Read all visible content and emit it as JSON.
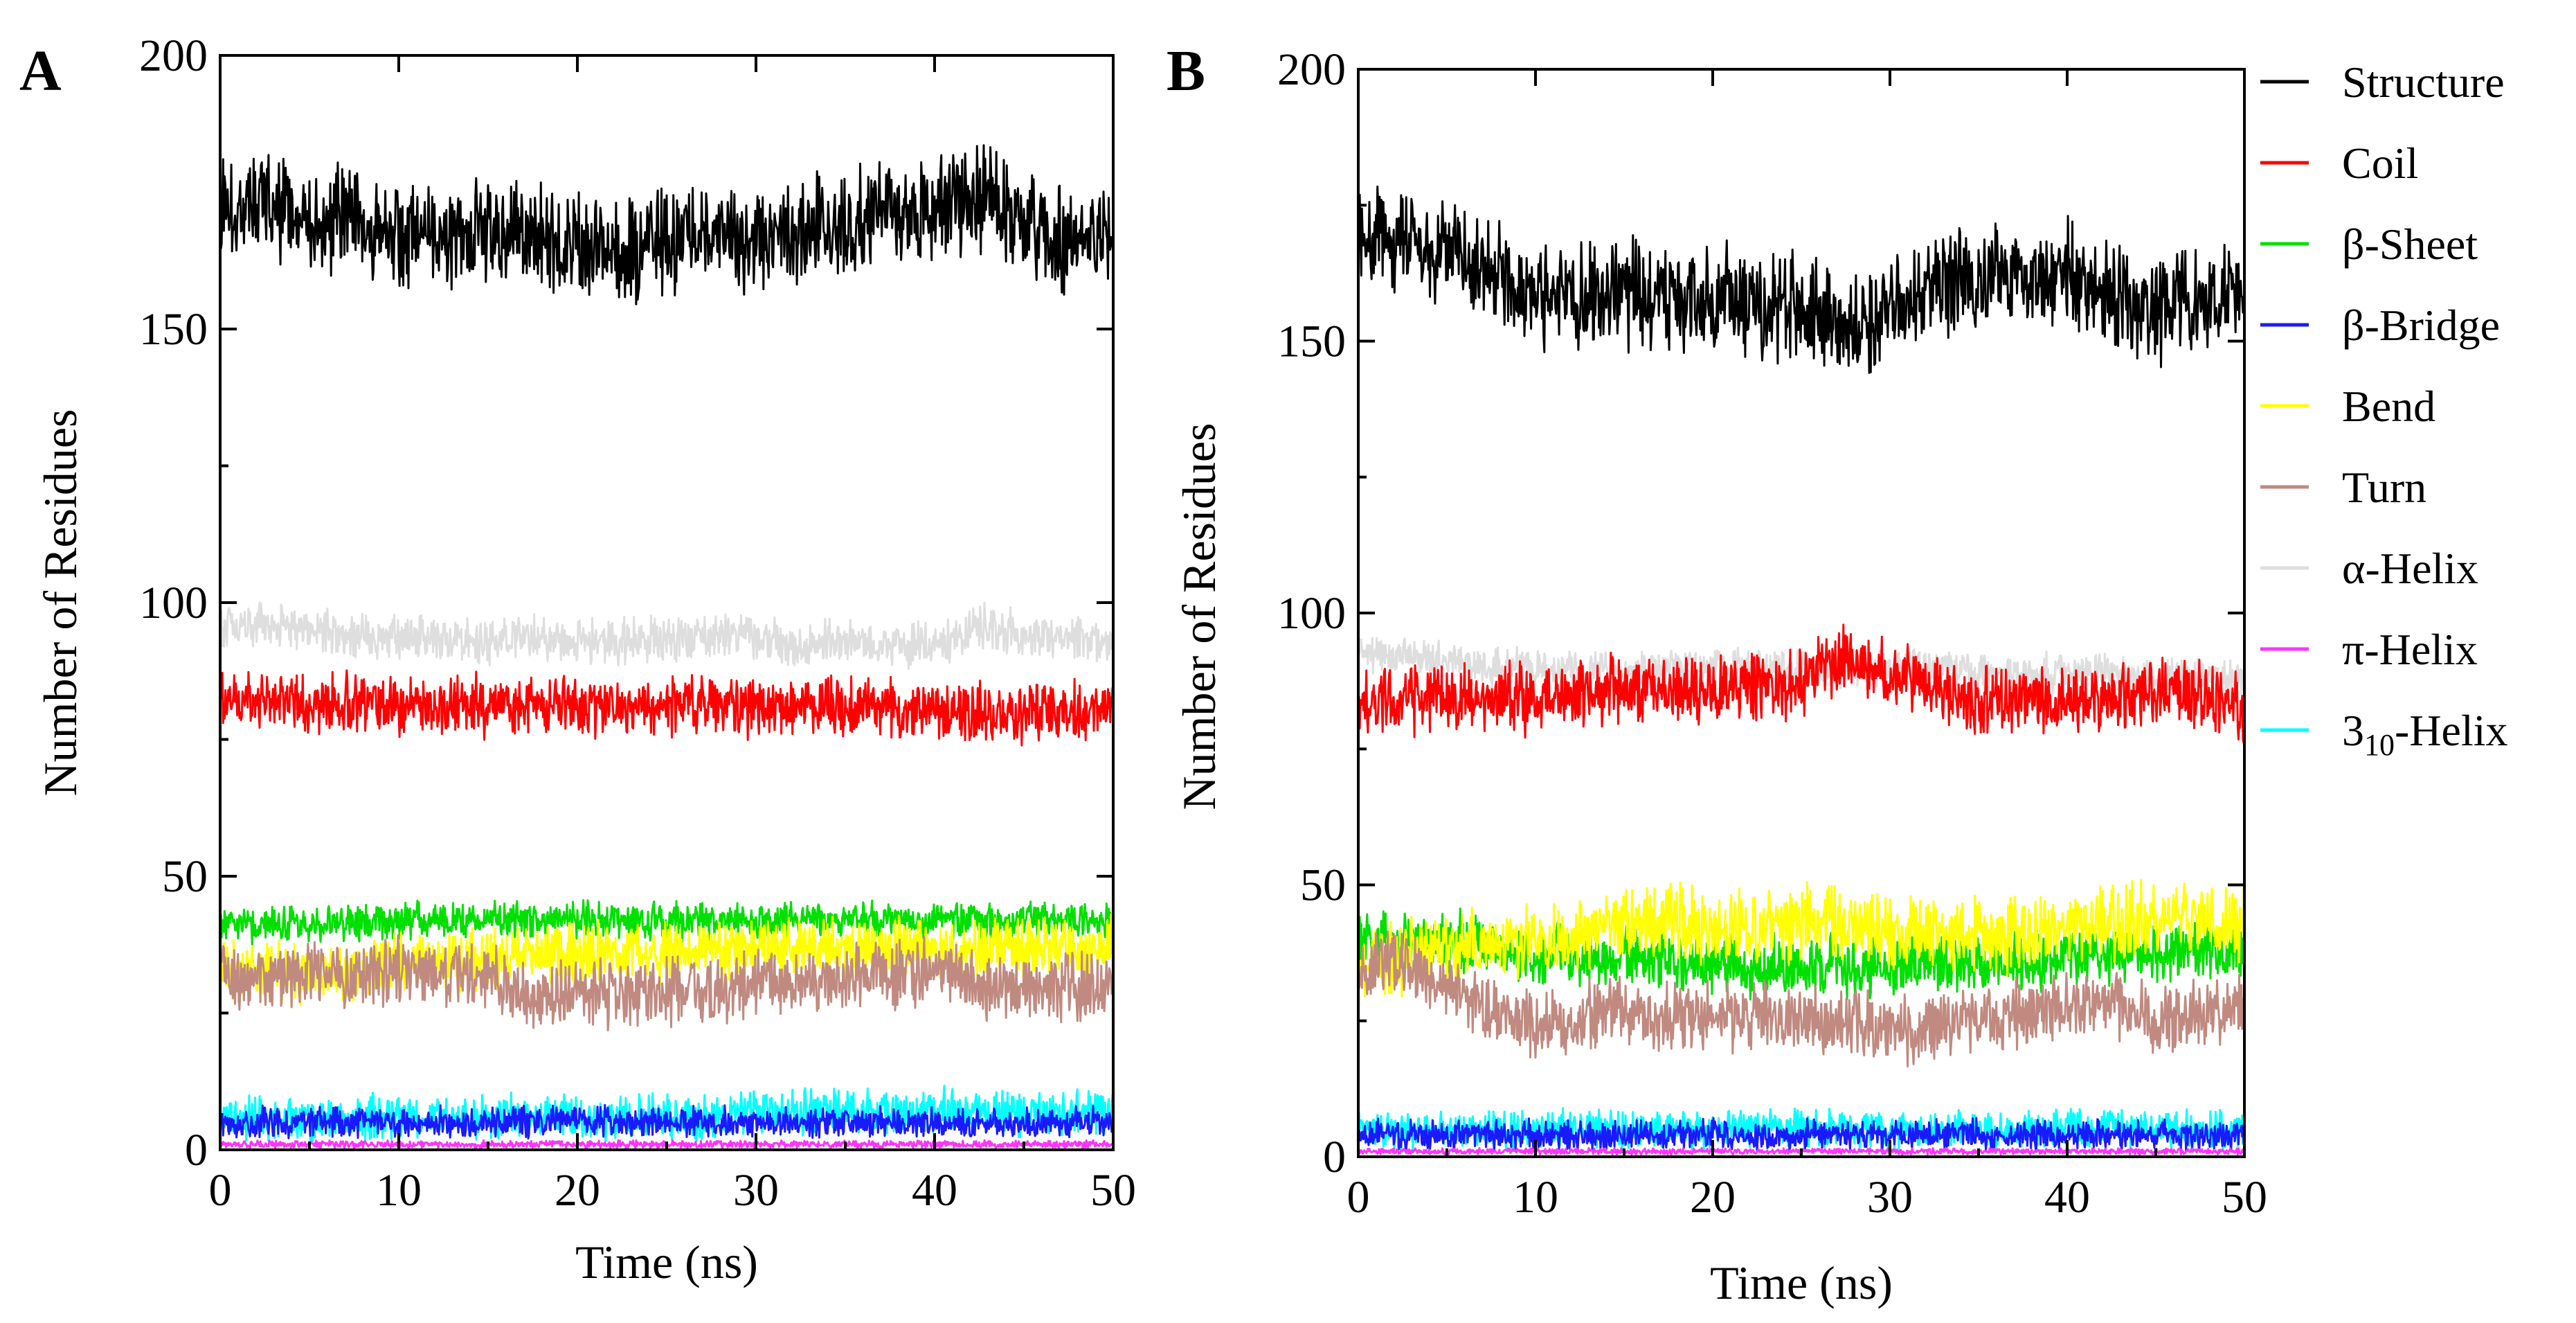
{
  "chart_data": [
    {
      "panel": "A",
      "type": "line",
      "xlabel": "Time (ns)",
      "ylabel": "Number of Residues",
      "xlim": [
        0,
        50
      ],
      "ylim": [
        0,
        200
      ],
      "xticks": [
        0,
        10,
        20,
        30,
        40,
        50
      ],
      "yticks": [
        0,
        50,
        100,
        150,
        200
      ],
      "x": [
        0,
        2.5,
        5,
        7.5,
        10,
        12.5,
        15,
        17.5,
        20,
        22.5,
        25,
        27.5,
        30,
        32.5,
        35,
        37.5,
        40,
        42.5,
        45,
        47.5,
        50
      ],
      "series": [
        {
          "name": "Structure",
          "color": "#000000",
          "noise": 7,
          "values": [
            173,
            172,
            170,
            169,
            168,
            168,
            167,
            166,
            166,
            165,
            166,
            167,
            166,
            168,
            169,
            171,
            172,
            174,
            168,
            166,
            168
          ]
        },
        {
          "name": "Coil",
          "color": "#ff0000",
          "noise": 4,
          "values": [
            82,
            82,
            81,
            82,
            81,
            81,
            81,
            81,
            81,
            81,
            81,
            81,
            81,
            81,
            81,
            81,
            80,
            80,
            80,
            80,
            80
          ]
        },
        {
          "name": "β-Sheet",
          "color": "#00e000",
          "noise": 2.5,
          "values": [
            41,
            41,
            41,
            42,
            42,
            42,
            42,
            42,
            42,
            42,
            42,
            42,
            42,
            42,
            42,
            42,
            42,
            42,
            42,
            42,
            42
          ]
        },
        {
          "name": "β-Bridge",
          "color": "#1a1aff",
          "noise": 2,
          "values": [
            5,
            5,
            5,
            5,
            5,
            5,
            5,
            5,
            5,
            5,
            5,
            5,
            5,
            5,
            5,
            5,
            5,
            5,
            5,
            5,
            5
          ]
        },
        {
          "name": "Bend",
          "color": "#ffff00",
          "noise": 4,
          "values": [
            33,
            33,
            32,
            32,
            34,
            35,
            35,
            36,
            36,
            36,
            36,
            37,
            37,
            37,
            37,
            37,
            37,
            37,
            37,
            37,
            37
          ]
        },
        {
          "name": "Turn",
          "color": "#c08a80",
          "noise": 4.5,
          "values": [
            33,
            31,
            33,
            32,
            33,
            32,
            32,
            27,
            29,
            28,
            29,
            29,
            30,
            30,
            31,
            32,
            33,
            30,
            30,
            30,
            30
          ]
        },
        {
          "name": "α-Helix",
          "color": "#dedede",
          "noise": 3,
          "values": [
            95,
            96,
            95,
            94,
            94,
            93,
            93,
            94,
            93,
            93,
            93,
            94,
            94,
            92,
            93,
            92,
            92,
            96,
            94,
            93,
            93
          ]
        },
        {
          "name": "π-Helix",
          "color": "#ff33ff",
          "noise": 0.5,
          "values": [
            1,
            1,
            1,
            1,
            1,
            1,
            1,
            1,
            1,
            1,
            1,
            1,
            1,
            1,
            1,
            1,
            1,
            1,
            1,
            1,
            1
          ]
        },
        {
          "name": "3₁₀-Helix",
          "color": "#00ffff",
          "noise": 3,
          "values": [
            6,
            6,
            6,
            6,
            6,
            6,
            6,
            6,
            6,
            6,
            6,
            6,
            7,
            7,
            7,
            7,
            7,
            7,
            7,
            7,
            7
          ]
        }
      ]
    },
    {
      "panel": "B",
      "type": "line",
      "xlabel": "Time (ns)",
      "ylabel": "Number of Residues",
      "xlim": [
        0,
        50
      ],
      "ylim": [
        0,
        200
      ],
      "xticks": [
        0,
        10,
        20,
        30,
        40,
        50
      ],
      "yticks": [
        0,
        50,
        100,
        150,
        200
      ],
      "x": [
        0,
        2.5,
        5,
        7.5,
        10,
        12.5,
        15,
        17.5,
        20,
        22.5,
        25,
        27.5,
        30,
        32.5,
        35,
        37.5,
        40,
        42.5,
        45,
        47.5,
        50
      ],
      "series": [
        {
          "name": "Structure",
          "color": "#000000",
          "noise": 7,
          "values": [
            171,
            168,
            167,
            162,
            158,
            158,
            159,
            158,
            158,
            157,
            157,
            152,
            154,
            160,
            161,
            161,
            163,
            158,
            156,
            157,
            160
          ]
        },
        {
          "name": "Coil",
          "color": "#ff0000",
          "noise": 4.5,
          "values": [
            84,
            84,
            84,
            85,
            84,
            85,
            86,
            86,
            86,
            86,
            87,
            92,
            89,
            87,
            84,
            85,
            83,
            84,
            86,
            85,
            82
          ]
        },
        {
          "name": "β-Sheet",
          "color": "#00e000",
          "noise": 4,
          "values": [
            40,
            39,
            40,
            38,
            37,
            37,
            37,
            36,
            36,
            35,
            35,
            35,
            35,
            36,
            36,
            36,
            37,
            37,
            38,
            38,
            38
          ]
        },
        {
          "name": "β-Bridge",
          "color": "#1a1aff",
          "noise": 2,
          "values": [
            4,
            4,
            4,
            4,
            4,
            4,
            4,
            4,
            4,
            4,
            4,
            4,
            4,
            4,
            4,
            4,
            4,
            4,
            4,
            4,
            4
          ]
        },
        {
          "name": "Bend",
          "color": "#ffff00",
          "noise": 5,
          "values": [
            35,
            37,
            38,
            40,
            40,
            41,
            43,
            43,
            42,
            42,
            43,
            43,
            42,
            41,
            41,
            41,
            42,
            43,
            44,
            44,
            43
          ]
        },
        {
          "name": "Turn",
          "color": "#c08a80",
          "noise": 4.5,
          "values": [
            36,
            35,
            32,
            27,
            24,
            25,
            27,
            26,
            26,
            26,
            25,
            25,
            23,
            24,
            26,
            26,
            28,
            28,
            25,
            26,
            28
          ]
        },
        {
          "name": "α-Helix",
          "color": "#dedede",
          "noise": 2.5,
          "values": [
            93,
            92,
            91,
            90,
            90,
            90,
            89,
            90,
            90,
            90,
            90,
            90,
            90,
            90,
            89,
            89,
            89,
            89,
            88,
            88,
            88
          ]
        },
        {
          "name": "π-Helix",
          "color": "#ff33ff",
          "noise": 0.4,
          "values": [
            1,
            1,
            1,
            1,
            1,
            1,
            1,
            1,
            1,
            1,
            1,
            1,
            1,
            1,
            1,
            1,
            1,
            1,
            1,
            1,
            1
          ]
        },
        {
          "name": "3₁₀-Helix",
          "color": "#00ffff",
          "noise": 2.5,
          "values": [
            5,
            5,
            5,
            5,
            5,
            5,
            5,
            5,
            5,
            5,
            5,
            5,
            5,
            5,
            5,
            5,
            5,
            5,
            5,
            5,
            5
          ]
        }
      ]
    }
  ],
  "legend": [
    {
      "label": "Structure",
      "color": "#000000"
    },
    {
      "label": "Coil",
      "color": "#ff0000"
    },
    {
      "label": "β-Sheet",
      "color": "#00e000"
    },
    {
      "label": "β-Bridge",
      "color": "#1a1aff"
    },
    {
      "label": "Bend",
      "color": "#ffff00"
    },
    {
      "label": "Turn",
      "color": "#c08a80"
    },
    {
      "label": "α-Helix",
      "color": "#dedede"
    },
    {
      "label": "π-Helix",
      "color": "#ff33ff"
    },
    {
      "label": "3",
      "subscript": "10",
      "suffix": "-Helix",
      "color": "#00ffff"
    }
  ]
}
